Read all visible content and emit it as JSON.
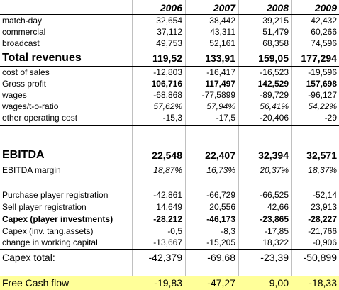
{
  "colors": {
    "highlight": "#ffff99",
    "grid": "#c0c0c0"
  },
  "years": [
    "2006",
    "2007",
    "2008",
    "2009"
  ],
  "rows": {
    "match_day": {
      "label": "match-day",
      "values": [
        "32,654",
        "38,442",
        "39,215",
        "42,432"
      ]
    },
    "commercial": {
      "label": "commercial",
      "values": [
        "37,112",
        "43,311",
        "51,479",
        "60,266"
      ]
    },
    "broadcast": {
      "label": "broadcast",
      "values": [
        "49,753",
        "52,161",
        "68,358",
        "74,596"
      ]
    },
    "total_revenues": {
      "label": "Total revenues",
      "values": [
        "119,52",
        "133,91",
        "159,05",
        "177,294"
      ]
    },
    "cost_of_sales": {
      "label": "cost of sales",
      "values": [
        "-12,803",
        "-16,417",
        "-16,523",
        "-19,596"
      ]
    },
    "gross_profit": {
      "label": "Gross profit",
      "values": [
        "106,716",
        "117,497",
        "142,529",
        "157,698"
      ]
    },
    "wages": {
      "label": "wages",
      "values": [
        "-68,868",
        "-77,5899",
        "-89,729",
        "-96,127"
      ]
    },
    "wages_ratio": {
      "label": "wages/t-o-ratio",
      "values": [
        "57,62%",
        "57,94%",
        "56,41%",
        "54,22%"
      ]
    },
    "other_operating_cost": {
      "label": "other operating cost",
      "values": [
        "-15,3",
        "-17,5",
        "-20,406",
        "-29"
      ]
    },
    "ebitda": {
      "label": "EBITDA",
      "values": [
        "22,548",
        "22,407",
        "32,394",
        "32,571"
      ]
    },
    "ebitda_margin": {
      "label": "EBITDA margin",
      "values": [
        "18,87%",
        "16,73%",
        "20,37%",
        "18,37%"
      ]
    },
    "purchase_player_registration": {
      "label": "Purchase player registration",
      "values": [
        "-42,861",
        "-66,729",
        "-66,525",
        "-52,14"
      ]
    },
    "sell_player_registration": {
      "label": "Sell player registration",
      "values": [
        "14,649",
        "20,556",
        "42,66",
        "23,913"
      ]
    },
    "capex_player": {
      "label": "Capex (player investments)",
      "values": [
        "-28,212",
        "-46,173",
        "-23,865",
        "-28,227"
      ]
    },
    "capex_tang": {
      "label": "Capex (inv. tang.assets)",
      "values": [
        "-0,5",
        "-8,3",
        "-17,85",
        "-21,766"
      ]
    },
    "working_capital": {
      "label": "change in working capital",
      "values": [
        "-13,667",
        "-15,205",
        "18,322",
        "-0,906"
      ]
    },
    "capex_total": {
      "label": "Capex total:",
      "values": [
        "-42,379",
        "-69,68",
        "-23,39",
        "-50,899"
      ]
    },
    "free_cash_flow": {
      "label": "Free Cash flow",
      "values": [
        "-19,83",
        "-47,27",
        "9,00",
        "-18,33"
      ]
    }
  }
}
